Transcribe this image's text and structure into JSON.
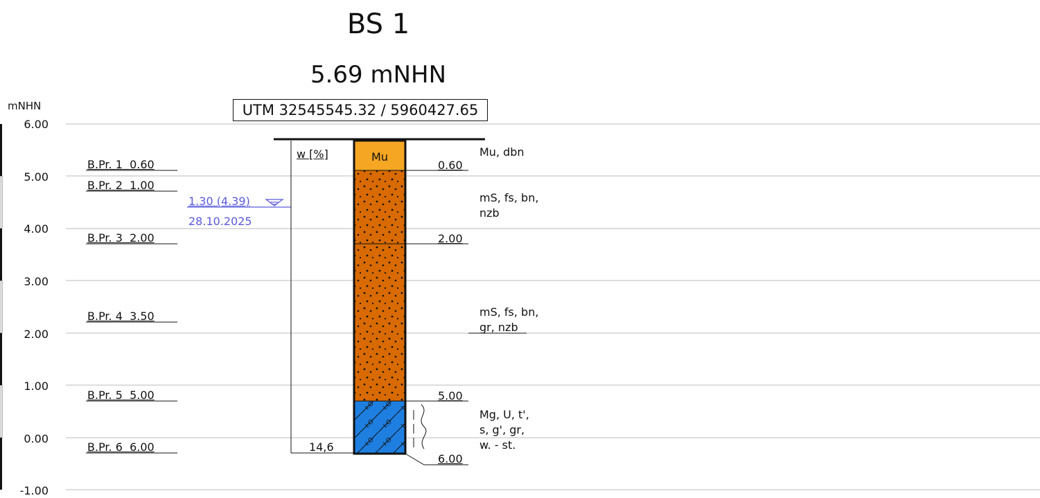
{
  "title": "BS 1",
  "elevation_label": "5.69 mNHN",
  "coordinates_label": "UTM 32545545.32 / 5960427.65",
  "axis": {
    "unit": "mNHN",
    "ticks": [
      "6.00",
      "5.00",
      "4.00",
      "3.00",
      "2.00",
      "1.00",
      "0.00",
      "-1.00"
    ]
  },
  "samples": [
    {
      "name": "B.Pr. 1",
      "depth": "0.60"
    },
    {
      "name": "B.Pr. 2",
      "depth": "1.00"
    },
    {
      "name": "B.Pr. 3",
      "depth": "2.00"
    },
    {
      "name": "B.Pr. 4",
      "depth": "3.50"
    },
    {
      "name": "B.Pr. 5",
      "depth": "5.00"
    },
    {
      "name": "B.Pr. 6",
      "depth": "6.00"
    }
  ],
  "water_level": {
    "value": "1.30 (4.39)",
    "date": "28.10.2025",
    "color": "#5a5adc"
  },
  "moisture": {
    "header": "w [%]",
    "value": "14,6"
  },
  "layers": [
    {
      "code": "Mu",
      "bottom": "0.60",
      "color": "#f5a623",
      "description": [
        "Mu, dbn"
      ]
    },
    {
      "code": "",
      "bottom": "2.00",
      "color": "#d86a00",
      "description": [
        "mS, fs, bn,",
        "nzb"
      ]
    },
    {
      "code": "",
      "bottom": "5.00",
      "color": "#d86a00",
      "description": [
        "mS, fs, bn,",
        "gr, nzb"
      ]
    },
    {
      "code": "",
      "bottom": "6.00",
      "color": "#1e7fe0",
      "description": [
        "Mg, U, t',",
        "s, g', gr,",
        "w. - st."
      ]
    }
  ]
}
